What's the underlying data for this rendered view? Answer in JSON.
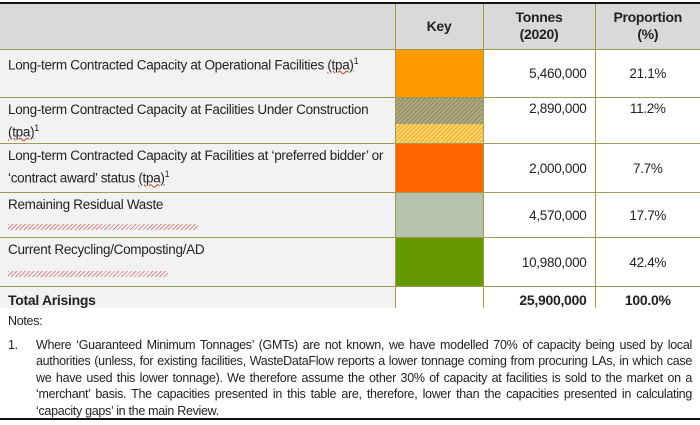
{
  "headers": {
    "label": "",
    "key": "Key",
    "tonnes": "Tonnes\n(2020)",
    "tonnes_l1": "Tonnes",
    "tonnes_l2": "(2020)",
    "proportion_l1": "Proportion",
    "proportion_l2": "(%)"
  },
  "rows": [
    {
      "label_a": "Long-term Contracted Capacity at Operational Facilities ",
      "label_b": "(tpa)",
      "sup": "1",
      "key_color": "#ff9900",
      "tonnes": "5,460,000",
      "proportion": "21.1%"
    },
    {
      "label_a": "Long-term Contracted Capacity at Facilities Under Construction ",
      "label_b": "(tpa)",
      "sup": "1",
      "key_color": "#a09a70",
      "key_color2": "#f5b830",
      "tonnes": "2,890,000",
      "proportion": "11.2%"
    },
    {
      "label_a": "Long-term Contracted Capacity at Facilities at ‘preferred bidder’ or ‘contract award’ status ",
      "label_b": "(tpa)",
      "sup": "1",
      "key_color": "#ff6600",
      "tonnes": "2,000,000",
      "proportion": "7.7%"
    },
    {
      "label_a": "Remaining Residual Waste",
      "key_color": "#b5c3ac",
      "tonnes": "4,570,000",
      "proportion": "17.7%"
    },
    {
      "label_a": "Current Recycling/Composting/AD",
      "key_color": "#669900",
      "tonnes": "10,980,000",
      "proportion": "42.4%"
    }
  ],
  "total": {
    "label": "Total Arisings",
    "tonnes": "25,900,000",
    "proportion": "100.0%"
  },
  "notes": {
    "title": "Notes:",
    "items": [
      {
        "num": "1.",
        "text": "Where ‘Guaranteed Minimum Tonnages’ (GMTs) are not known, we have modelled 70% of capacity being used by local authorities (unless, for existing facilities, WasteDataFlow reports a lower tonnage coming from procuring LAs, in which case we have used this lower tonnage). We therefore assume the other 30% of capacity at facilities is sold to the market on a ‘merchant’ basis. The capacities presented in this table are, therefore, lower than the capacities presented in calculating ‘capacity gaps’ in the main Review."
      }
    ]
  }
}
